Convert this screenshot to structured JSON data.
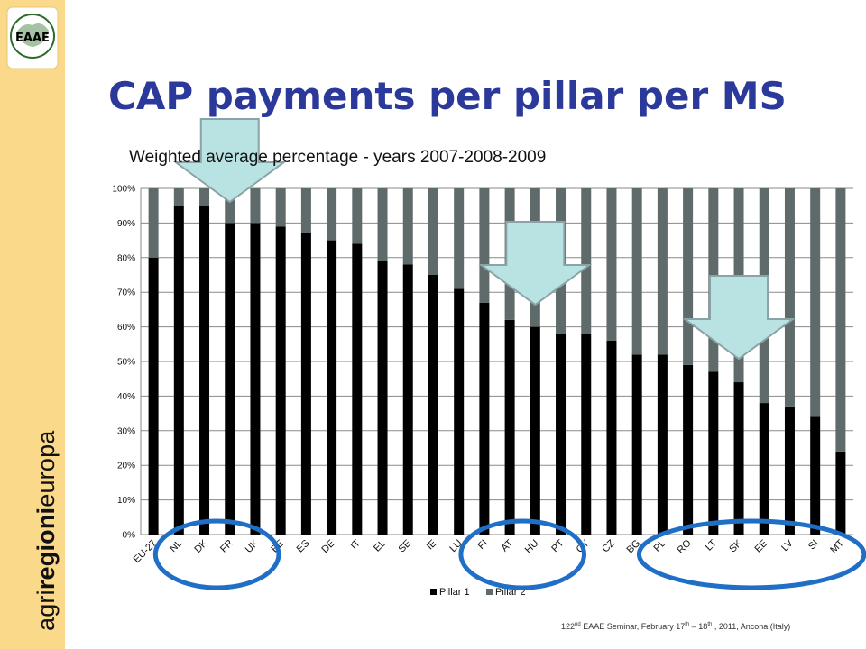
{
  "brand": {
    "part1": "agri",
    "part2": "regioni",
    "part3": "europa",
    "logo_text": "EAAE"
  },
  "slide": {
    "title": "CAP payments per pillar per MS"
  },
  "footer": {
    "p1": "122",
    "s1": "nd",
    "p2": " EAAE Seminar, February 17",
    "s2": "th",
    "p3": " – 18",
    "s3": "th",
    "p4": " , 2011, Ancona (Italy)"
  },
  "chart_data": {
    "type": "bar",
    "stacked": true,
    "title": "Weighted average percentage - years 2007-2008-2009",
    "categories": [
      "EU-27",
      "NL",
      "DK",
      "FR",
      "UK",
      "BE",
      "ES",
      "DE",
      "IT",
      "EL",
      "SE",
      "IE",
      "LU",
      "FI",
      "AT",
      "HU",
      "PT",
      "CY",
      "CZ",
      "BG",
      "PL",
      "RO",
      "LT",
      "SK",
      "EE",
      "LV",
      "SI",
      "MT"
    ],
    "series": [
      {
        "name": "Pillar 1",
        "color": "#000000",
        "values": [
          80,
          95,
          95,
          90,
          90,
          89,
          87,
          85,
          84,
          79,
          78,
          75,
          71,
          67,
          62,
          60,
          58,
          58,
          56,
          52,
          52,
          49,
          47,
          44,
          38,
          37,
          34,
          24
        ]
      },
      {
        "name": "Pillar 2",
        "color": "#5f6b6b",
        "values": [
          20,
          5,
          5,
          10,
          10,
          11,
          13,
          15,
          16,
          21,
          22,
          25,
          29,
          33,
          38,
          40,
          42,
          42,
          44,
          48,
          48,
          51,
          53,
          56,
          62,
          63,
          66,
          76
        ]
      }
    ],
    "y_ticks": [
      "0%",
      "10%",
      "20%",
      "30%",
      "40%",
      "50%",
      "60%",
      "70%",
      "80%",
      "90%",
      "100%"
    ],
    "ylim": [
      0,
      100
    ],
    "legend": "bottom",
    "annotations": {
      "arrows": [
        {
          "type": "down-arrow",
          "color": "#b9e2e3",
          "points_to": "FR"
        },
        {
          "type": "down-arrow",
          "color": "#b9e2e3",
          "points_to": "HU"
        },
        {
          "type": "down-arrow",
          "color": "#b9e2e3",
          "points_to": "SK"
        }
      ],
      "ellipses": [
        {
          "type": "ellipse",
          "color": "#1f6fc7",
          "around": [
            "NL",
            "DK",
            "FR",
            "UK"
          ]
        },
        {
          "type": "ellipse",
          "color": "#1f6fc7",
          "around": [
            "FI",
            "AT",
            "HU",
            "PT"
          ]
        },
        {
          "type": "ellipse",
          "color": "#1f6fc7",
          "around": [
            "PL",
            "RO",
            "LT",
            "SK",
            "EE",
            "LV",
            "SI",
            "MT"
          ]
        }
      ]
    }
  }
}
